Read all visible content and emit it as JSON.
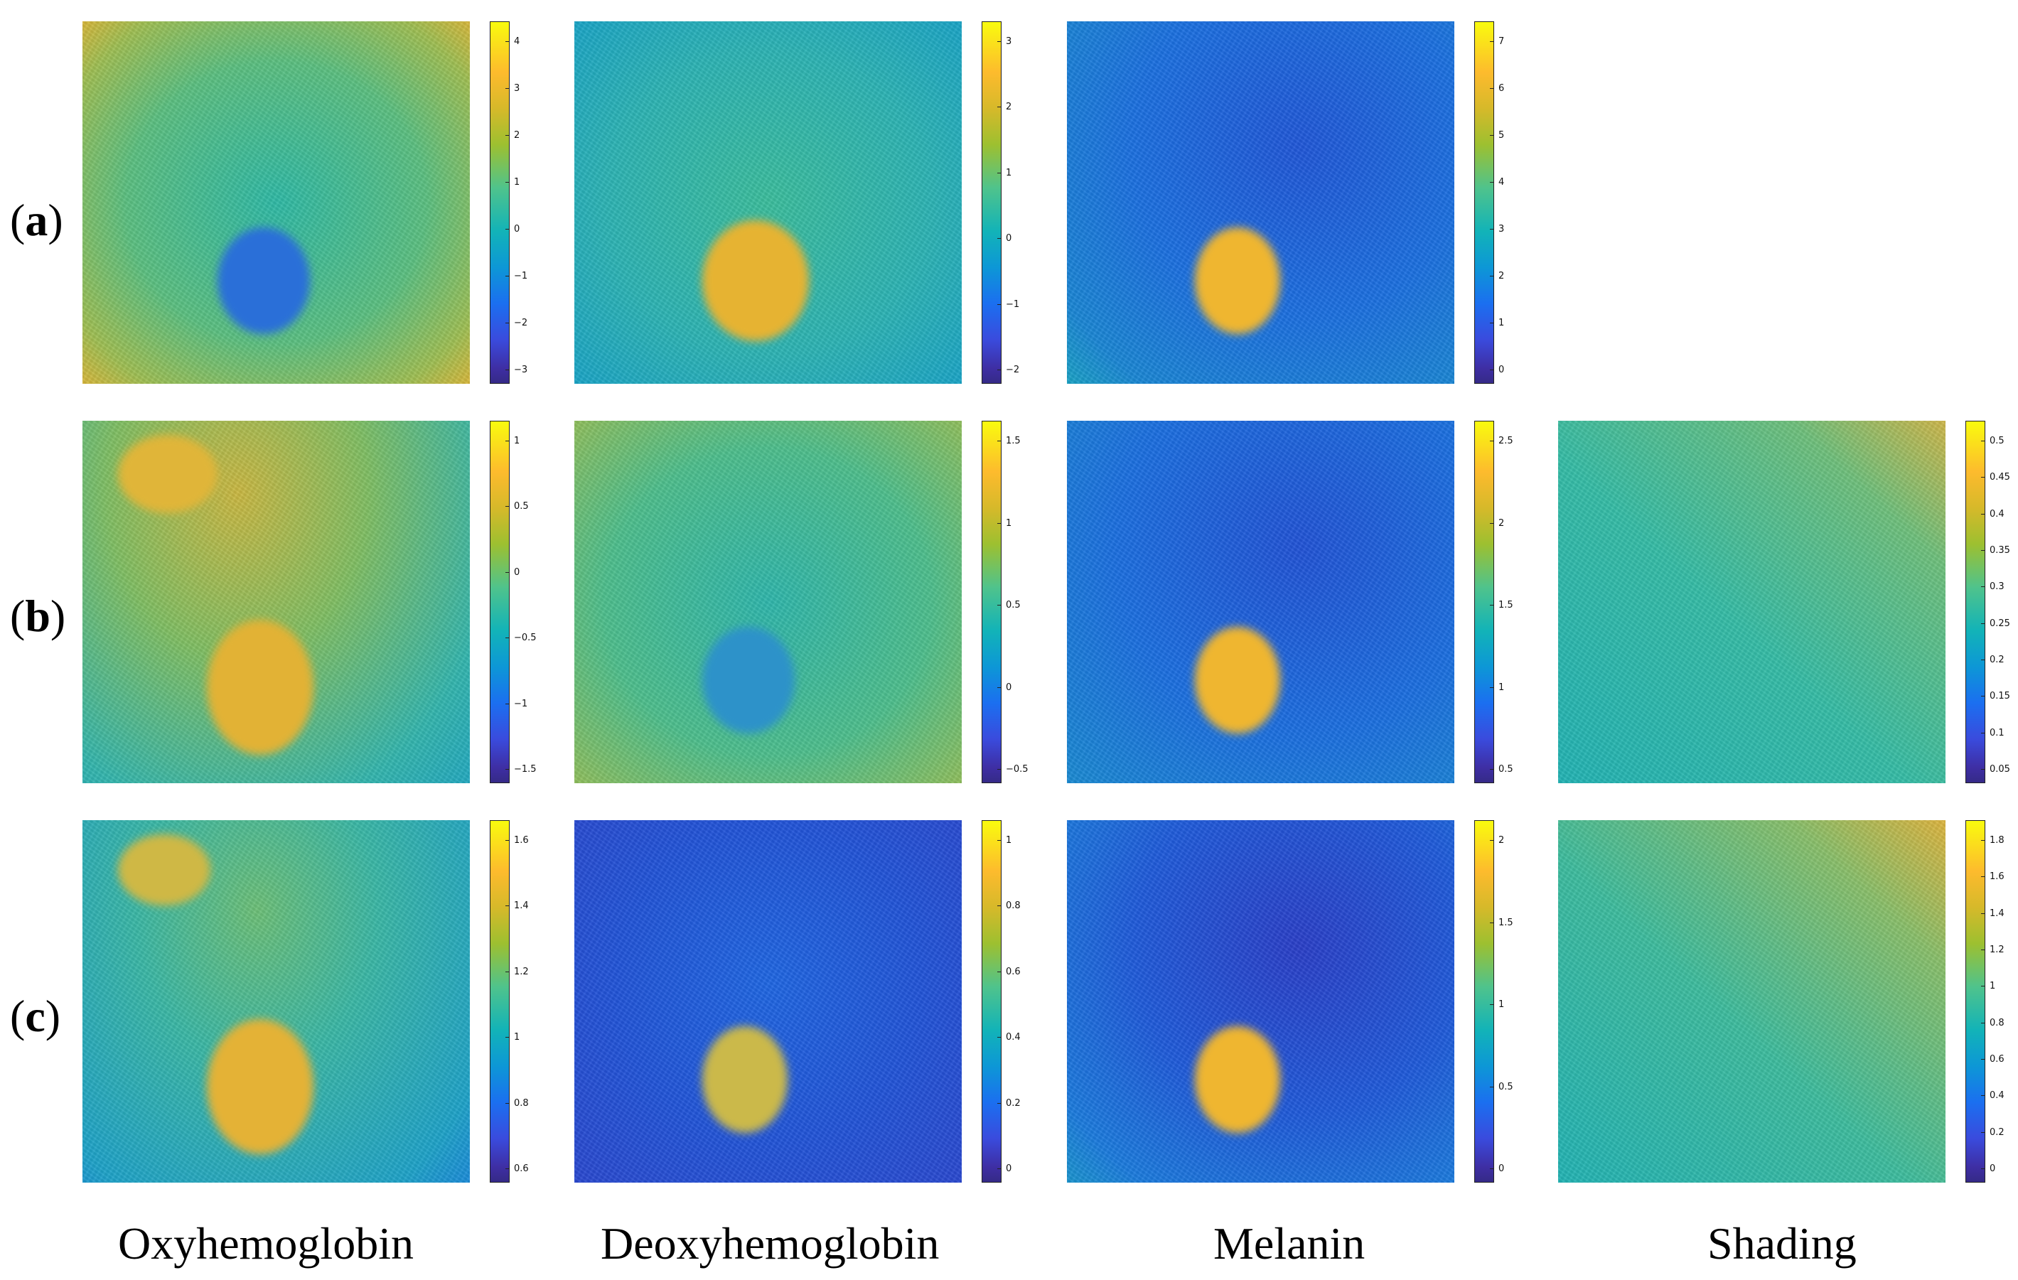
{
  "row_labels": [
    {
      "open": "(",
      "letter": "a",
      "close": ")"
    },
    {
      "open": "(",
      "letter": "b",
      "close": ")"
    },
    {
      "open": "(",
      "letter": "c",
      "close": ")"
    }
  ],
  "column_labels": [
    "Oxyhemoglobin",
    "Deoxyhemoglobin",
    "Melanin",
    "Shading"
  ],
  "panels": [
    {
      "id": "a-oxy",
      "colorbar_ticks": [
        "4",
        "3",
        "2",
        "1",
        "0",
        "−1",
        "−2",
        "−3"
      ]
    },
    {
      "id": "a-deoxy",
      "colorbar_ticks": [
        "3",
        "2",
        "1",
        "0",
        "−1",
        "−2"
      ]
    },
    {
      "id": "a-melanin",
      "colorbar_ticks": [
        "7",
        "6",
        "5",
        "4",
        "3",
        "2",
        "1",
        "0"
      ]
    },
    {
      "id": "b-oxy",
      "colorbar_ticks": [
        "1",
        "0.5",
        "0",
        "−0.5",
        "−1",
        "−1.5"
      ]
    },
    {
      "id": "b-deoxy",
      "colorbar_ticks": [
        "1.5",
        "1",
        "0.5",
        "0",
        "−0.5"
      ]
    },
    {
      "id": "b-melanin",
      "colorbar_ticks": [
        "2.5",
        "2",
        "1.5",
        "1",
        "0.5"
      ]
    },
    {
      "id": "b-shading",
      "colorbar_ticks": [
        "0.5",
        "0.45",
        "0.4",
        "0.35",
        "0.3",
        "0.25",
        "0.2",
        "0.15",
        "0.1",
        "0.05"
      ]
    },
    {
      "id": "c-oxy",
      "colorbar_ticks": [
        "1.6",
        "1.4",
        "1.2",
        "1",
        "0.8",
        "0.6"
      ]
    },
    {
      "id": "c-deoxy",
      "colorbar_ticks": [
        "1",
        "0.8",
        "0.6",
        "0.4",
        "0.2",
        "0"
      ]
    },
    {
      "id": "c-melanin",
      "colorbar_ticks": [
        "2",
        "1.5",
        "1",
        "0.5",
        "0"
      ]
    },
    {
      "id": "c-shading",
      "colorbar_ticks": [
        "1.8",
        "1.6",
        "1.4",
        "1.2",
        "1",
        "0.8",
        "0.6",
        "0.4",
        "0.2",
        "0"
      ]
    }
  ],
  "colors": {
    "colormap_high": "#f9fb0e",
    "colormap_mid": "#12b3b8",
    "colormap_low": "#352a87"
  }
}
